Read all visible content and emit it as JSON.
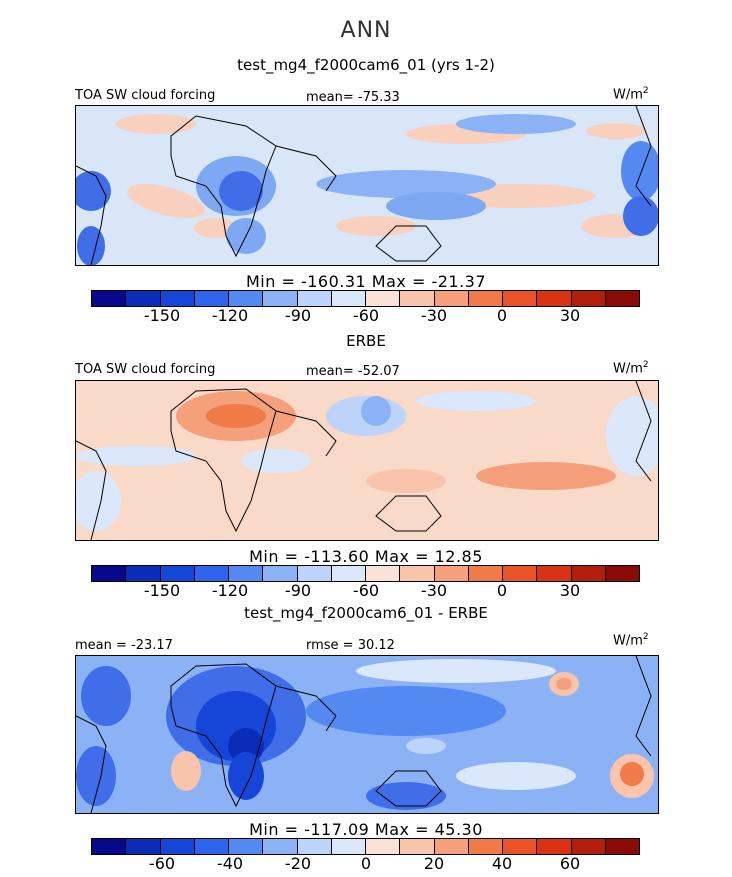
{
  "figure": {
    "title": "ANN"
  },
  "panels": [
    {
      "title": "test_mg4_f2000cam6_01 (yrs 1-2)",
      "left_label": "TOA SW cloud forcing",
      "center_label": "mean= -75.33",
      "units": "W/m",
      "units_sup": "2",
      "minmax": "Min = -160.31 Max = -21.37"
    },
    {
      "title": "ERBE",
      "left_label": "TOA SW cloud forcing",
      "center_label": "mean= -52.07",
      "units": "W/m",
      "units_sup": "2",
      "minmax": "Min = -113.60 Max =  12.85"
    },
    {
      "title": "test_mg4_f2000cam6_01 - ERBE",
      "left_label": "mean = -23.17",
      "center_label": "rmse =  30.12",
      "units": "W/m",
      "units_sup": "2",
      "minmax": "Min = -117.09 Max =  45.30"
    }
  ],
  "colorbars": {
    "colors": [
      "#08088c",
      "#0a2cb8",
      "#1646d8",
      "#2e63ee",
      "#5489f2",
      "#8cb2f6",
      "#bcd3fa",
      "#dbe8fb",
      "#fbe2d6",
      "#f8c4ac",
      "#f5a07a",
      "#f07a48",
      "#ea5228",
      "#d83414",
      "#b11f0c",
      "#8a0a06"
    ],
    "ticks_top": [
      "-150",
      "-120",
      "-90",
      "-60",
      "-30",
      "0",
      "30"
    ],
    "ticks_diff": [
      "-60",
      "-40",
      "-20",
      "0",
      "20",
      "40",
      "60"
    ]
  }
}
